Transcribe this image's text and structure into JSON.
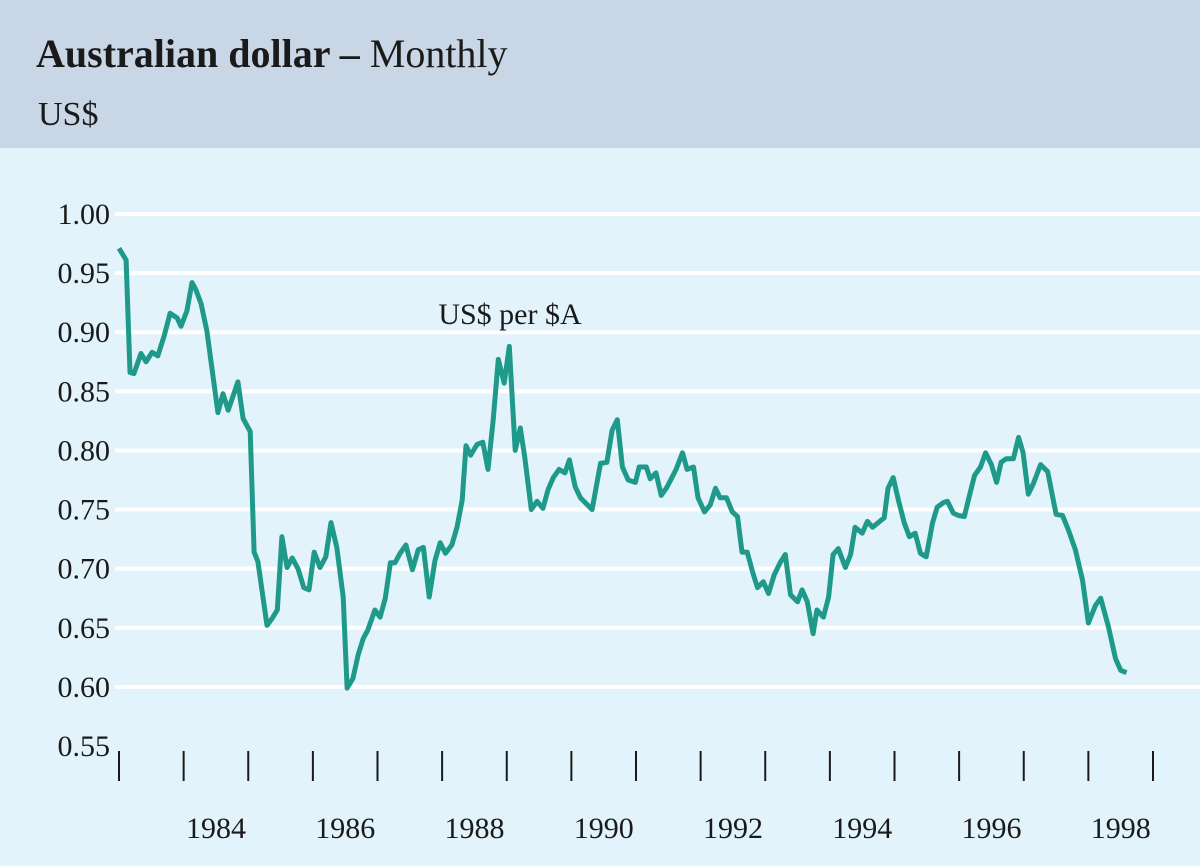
{
  "header": {
    "title_bold": "Australian dollar –",
    "title_regular": "Monthly",
    "unit": "US$"
  },
  "colors": {
    "header_bg": "#c9d6e6",
    "plot_bg": "#e2f3fc",
    "line": "#1f9a8a",
    "grid": "#ffffff"
  },
  "chart_data": {
    "type": "line",
    "title": "Australian dollar – Monthly",
    "ylabel": "US$",
    "ylim": [
      0.55,
      1.0
    ],
    "xlim": [
      1983,
      1999
    ],
    "yticks": [
      "1.00",
      "0.95",
      "0.90",
      "0.85",
      "0.80",
      "0.75",
      "0.70",
      "0.65",
      "0.60",
      "0.55"
    ],
    "xtick_labels": [
      "1984",
      "1986",
      "1988",
      "1990",
      "1992",
      "1994",
      "1996",
      "1998"
    ],
    "grid": true,
    "annotation": "US$ per $A",
    "series": [
      {
        "name": "US$ per $A",
        "points": [
          [
            1983.0,
            0.971
          ],
          [
            1983.11,
            0.961
          ],
          [
            1983.17,
            0.866
          ],
          [
            1983.23,
            0.865
          ],
          [
            1983.34,
            0.882
          ],
          [
            1983.42,
            0.875
          ],
          [
            1983.51,
            0.883
          ],
          [
            1983.6,
            0.88
          ],
          [
            1983.7,
            0.897
          ],
          [
            1983.79,
            0.916
          ],
          [
            1983.9,
            0.912
          ],
          [
            1983.96,
            0.905
          ],
          [
            1984.05,
            0.918
          ],
          [
            1984.13,
            0.942
          ],
          [
            1984.19,
            0.936
          ],
          [
            1984.27,
            0.924
          ],
          [
            1984.36,
            0.901
          ],
          [
            1984.53,
            0.832
          ],
          [
            1984.61,
            0.848
          ],
          [
            1984.69,
            0.834
          ],
          [
            1984.84,
            0.858
          ],
          [
            1984.92,
            0.827
          ],
          [
            1985.03,
            0.816
          ],
          [
            1985.09,
            0.714
          ],
          [
            1985.15,
            0.706
          ],
          [
            1985.29,
            0.652
          ],
          [
            1985.37,
            0.658
          ],
          [
            1985.45,
            0.665
          ],
          [
            1985.52,
            0.727
          ],
          [
            1985.6,
            0.701
          ],
          [
            1985.68,
            0.709
          ],
          [
            1985.77,
            0.7
          ],
          [
            1985.86,
            0.684
          ],
          [
            1985.94,
            0.682
          ],
          [
            1986.02,
            0.714
          ],
          [
            1986.11,
            0.701
          ],
          [
            1986.2,
            0.71
          ],
          [
            1986.28,
            0.739
          ],
          [
            1986.37,
            0.718
          ],
          [
            1986.47,
            0.676
          ],
          [
            1986.53,
            0.599
          ],
          [
            1986.62,
            0.607
          ],
          [
            1986.7,
            0.627
          ],
          [
            1986.78,
            0.641
          ],
          [
            1986.85,
            0.648
          ],
          [
            1986.96,
            0.665
          ],
          [
            1987.04,
            0.659
          ],
          [
            1987.12,
            0.675
          ],
          [
            1987.2,
            0.705
          ],
          [
            1987.27,
            0.705
          ],
          [
            1987.35,
            0.713
          ],
          [
            1987.44,
            0.72
          ],
          [
            1987.54,
            0.699
          ],
          [
            1987.63,
            0.716
          ],
          [
            1987.71,
            0.718
          ],
          [
            1987.8,
            0.676
          ],
          [
            1987.89,
            0.707
          ],
          [
            1987.97,
            0.722
          ],
          [
            1988.05,
            0.713
          ],
          [
            1988.15,
            0.72
          ],
          [
            1988.23,
            0.735
          ],
          [
            1988.31,
            0.758
          ],
          [
            1988.37,
            0.804
          ],
          [
            1988.44,
            0.796
          ],
          [
            1988.54,
            0.805
          ],
          [
            1988.63,
            0.807
          ],
          [
            1988.71,
            0.784
          ],
          [
            1988.79,
            0.826
          ],
          [
            1988.87,
            0.877
          ],
          [
            1988.96,
            0.857
          ],
          [
            1989.04,
            0.888
          ],
          [
            1989.13,
            0.8
          ],
          [
            1989.21,
            0.819
          ],
          [
            1989.28,
            0.794
          ],
          [
            1989.38,
            0.75
          ],
          [
            1989.47,
            0.757
          ],
          [
            1989.56,
            0.751
          ],
          [
            1989.64,
            0.767
          ],
          [
            1989.72,
            0.777
          ],
          [
            1989.81,
            0.784
          ],
          [
            1989.9,
            0.781
          ],
          [
            1989.97,
            0.792
          ],
          [
            1990.06,
            0.769
          ],
          [
            1990.14,
            0.76
          ],
          [
            1990.32,
            0.75
          ],
          [
            1990.45,
            0.789
          ],
          [
            1990.55,
            0.79
          ],
          [
            1990.63,
            0.817
          ],
          [
            1990.71,
            0.826
          ],
          [
            1990.79,
            0.786
          ],
          [
            1990.88,
            0.775
          ],
          [
            1990.99,
            0.773
          ],
          [
            1991.05,
            0.786
          ],
          [
            1991.16,
            0.786
          ],
          [
            1991.22,
            0.776
          ],
          [
            1991.31,
            0.781
          ],
          [
            1991.39,
            0.762
          ],
          [
            1991.48,
            0.769
          ],
          [
            1991.62,
            0.784
          ],
          [
            1991.72,
            0.798
          ],
          [
            1991.79,
            0.784
          ],
          [
            1991.89,
            0.786
          ],
          [
            1991.96,
            0.76
          ],
          [
            1992.06,
            0.748
          ],
          [
            1992.15,
            0.754
          ],
          [
            1992.23,
            0.768
          ],
          [
            1992.3,
            0.76
          ],
          [
            1992.4,
            0.76
          ],
          [
            1992.49,
            0.748
          ],
          [
            1992.57,
            0.744
          ],
          [
            1992.64,
            0.714
          ],
          [
            1992.72,
            0.714
          ],
          [
            1992.81,
            0.696
          ],
          [
            1992.88,
            0.684
          ],
          [
            1992.97,
            0.689
          ],
          [
            1993.05,
            0.679
          ],
          [
            1993.14,
            0.695
          ],
          [
            1993.23,
            0.705
          ],
          [
            1993.31,
            0.712
          ],
          [
            1993.39,
            0.678
          ],
          [
            1993.5,
            0.672
          ],
          [
            1993.57,
            0.682
          ],
          [
            1993.65,
            0.672
          ],
          [
            1993.74,
            0.645
          ],
          [
            1993.8,
            0.665
          ],
          [
            1993.9,
            0.659
          ],
          [
            1993.98,
            0.676
          ],
          [
            1994.05,
            0.712
          ],
          [
            1994.13,
            0.717
          ],
          [
            1994.24,
            0.701
          ],
          [
            1994.32,
            0.712
          ],
          [
            1994.39,
            0.735
          ],
          [
            1994.5,
            0.73
          ],
          [
            1994.58,
            0.74
          ],
          [
            1994.66,
            0.735
          ],
          [
            1994.75,
            0.739
          ],
          [
            1994.84,
            0.743
          ],
          [
            1994.9,
            0.768
          ],
          [
            1994.98,
            0.777
          ],
          [
            1995.06,
            0.758
          ],
          [
            1995.15,
            0.739
          ],
          [
            1995.23,
            0.727
          ],
          [
            1995.32,
            0.73
          ],
          [
            1995.4,
            0.713
          ],
          [
            1995.49,
            0.71
          ],
          [
            1995.59,
            0.739
          ],
          [
            1995.66,
            0.752
          ],
          [
            1995.76,
            0.756
          ],
          [
            1995.82,
            0.757
          ],
          [
            1995.91,
            0.747
          ],
          [
            1995.99,
            0.745
          ],
          [
            1996.08,
            0.744
          ],
          [
            1996.16,
            0.762
          ],
          [
            1996.24,
            0.779
          ],
          [
            1996.33,
            0.786
          ],
          [
            1996.41,
            0.798
          ],
          [
            1996.5,
            0.788
          ],
          [
            1996.58,
            0.773
          ],
          [
            1996.65,
            0.79
          ],
          [
            1996.73,
            0.793
          ],
          [
            1996.84,
            0.793
          ],
          [
            1996.92,
            0.811
          ],
          [
            1996.99,
            0.798
          ],
          [
            1997.07,
            0.763
          ],
          [
            1997.15,
            0.772
          ],
          [
            1997.26,
            0.788
          ],
          [
            1997.37,
            0.782
          ],
          [
            1997.5,
            0.746
          ],
          [
            1997.6,
            0.745
          ],
          [
            1997.69,
            0.733
          ],
          [
            1997.8,
            0.716
          ],
          [
            1997.91,
            0.69
          ],
          [
            1998.0,
            0.654
          ],
          [
            1998.11,
            0.669
          ],
          [
            1998.19,
            0.675
          ],
          [
            1998.31,
            0.651
          ],
          [
            1998.42,
            0.624
          ],
          [
            1998.5,
            0.614
          ],
          [
            1998.59,
            0.612
          ]
        ]
      }
    ]
  }
}
